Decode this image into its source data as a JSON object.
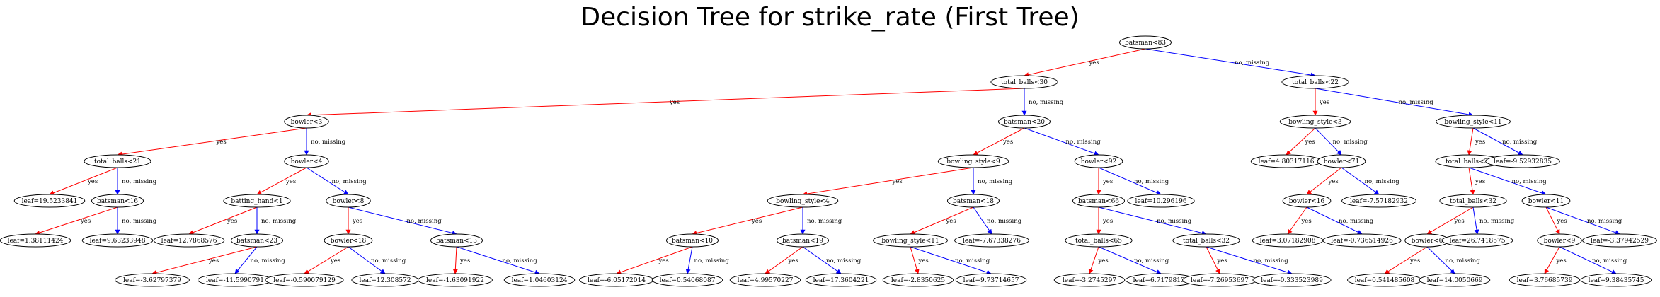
{
  "title": "Decision Tree for strike_rate (First Tree)",
  "colors": {
    "yes_edge": "#ff0000",
    "no_edge": "#0000ff",
    "node_stroke": "#000000",
    "background": "#ffffff"
  },
  "nodes": [
    {
      "id": "n0",
      "label": "batsman<83",
      "level": 0
    },
    {
      "id": "n1",
      "label": "total_balls<30",
      "level": 1
    },
    {
      "id": "n2",
      "label": "total_balls<22",
      "level": 1
    },
    {
      "id": "n3",
      "label": "bowler<3",
      "level": 2
    },
    {
      "id": "n4",
      "label": "batsman<20",
      "level": 2
    },
    {
      "id": "n5",
      "label": "bowling_style<3",
      "level": 2
    },
    {
      "id": "n6",
      "label": "bowling_style<11",
      "level": 2
    },
    {
      "id": "n7",
      "label": "total_balls<21",
      "level": 3
    },
    {
      "id": "n8",
      "label": "bowler<4",
      "level": 3
    },
    {
      "id": "n9",
      "label": "bowling_style<9",
      "level": 3
    },
    {
      "id": "n10",
      "label": "bowler<92",
      "level": 3
    },
    {
      "id": "n11",
      "label": "leaf=4.80317116",
      "level": 3
    },
    {
      "id": "n12",
      "label": "bowler<71",
      "level": 3
    },
    {
      "id": "n13",
      "label": "total_balls<33",
      "level": 3
    },
    {
      "id": "n14",
      "label": "leaf=-9.52932835",
      "level": 3
    },
    {
      "id": "n15",
      "label": "leaf=19.5233841",
      "level": 4
    },
    {
      "id": "n16",
      "label": "batsman<16",
      "level": 4
    },
    {
      "id": "n17",
      "label": "batting_hand<1",
      "level": 4
    },
    {
      "id": "n18",
      "label": "bowler<8",
      "level": 4
    },
    {
      "id": "n19",
      "label": "bowling_style<4",
      "level": 4
    },
    {
      "id": "n20",
      "label": "batsman<18",
      "level": 4
    },
    {
      "id": "n21",
      "label": "batsman<66",
      "level": 4
    },
    {
      "id": "n22",
      "label": "leaf=10.296196",
      "level": 4
    },
    {
      "id": "n23",
      "label": "bowler<16",
      "level": 4
    },
    {
      "id": "n24",
      "label": "leaf=-7.57182932",
      "level": 4
    },
    {
      "id": "n25",
      "label": "total_balls<32",
      "level": 4
    },
    {
      "id": "n26",
      "label": "bowler<11",
      "level": 4
    },
    {
      "id": "n27",
      "label": "leaf=1.38111424",
      "level": 5
    },
    {
      "id": "n28",
      "label": "leaf=9.63233948",
      "level": 5
    },
    {
      "id": "n29",
      "label": "leaf=12.7868576",
      "level": 5
    },
    {
      "id": "n30",
      "label": "batsman<23",
      "level": 5
    },
    {
      "id": "n31",
      "label": "bowler<18",
      "level": 5
    },
    {
      "id": "n32",
      "label": "batsman<13",
      "level": 5
    },
    {
      "id": "n33",
      "label": "batsman<10",
      "level": 5
    },
    {
      "id": "n34",
      "label": "batsman<19",
      "level": 5
    },
    {
      "id": "n35",
      "label": "bowling_style<11",
      "level": 5
    },
    {
      "id": "n36",
      "label": "leaf=-7.67338276",
      "level": 5
    },
    {
      "id": "n37",
      "label": "total_balls<65",
      "level": 5
    },
    {
      "id": "n38",
      "label": "total_balls<32",
      "level": 5
    },
    {
      "id": "n39",
      "label": "leaf=3.07182908",
      "level": 5
    },
    {
      "id": "n40",
      "label": "leaf=-0.736514926",
      "level": 5
    },
    {
      "id": "n41",
      "label": "bowler<6",
      "level": 5
    },
    {
      "id": "n42",
      "label": "leaf=26.7418575",
      "level": 5
    },
    {
      "id": "n43",
      "label": "bowler<9",
      "level": 5
    },
    {
      "id": "n44",
      "label": "leaf=-3.37942529",
      "level": 5
    },
    {
      "id": "n45",
      "label": "leaf=-3.62797379",
      "level": 6
    },
    {
      "id": "n46",
      "label": "leaf=-11.5990791",
      "level": 6
    },
    {
      "id": "n47",
      "label": "leaf=-0.590079129",
      "level": 6
    },
    {
      "id": "n48",
      "label": "leaf=12.308572",
      "level": 6
    },
    {
      "id": "n49",
      "label": "leaf=-1.63091922",
      "level": 6
    },
    {
      "id": "n50",
      "label": "leaf=1.04603124",
      "level": 6
    },
    {
      "id": "n51",
      "label": "leaf=-6.05172014",
      "level": 6
    },
    {
      "id": "n52",
      "label": "leaf=0.54068087",
      "level": 6
    },
    {
      "id": "n53",
      "label": "leaf=4.99570227",
      "level": 6
    },
    {
      "id": "n54",
      "label": "leaf=17.3604221",
      "level": 6
    },
    {
      "id": "n55",
      "label": "leaf=-2.8350625",
      "level": 6
    },
    {
      "id": "n56",
      "label": "leaf=9.73714657",
      "level": 6
    },
    {
      "id": "n57",
      "label": "leaf=-3.2745297",
      "level": 6
    },
    {
      "id": "n58",
      "label": "leaf=6.71798134",
      "level": 6
    },
    {
      "id": "n59",
      "label": "leaf=-7.26953697",
      "level": 6
    },
    {
      "id": "n60",
      "label": "leaf=-0.333523989",
      "level": 6
    },
    {
      "id": "n61",
      "label": "leaf=0.541485608",
      "level": 6
    },
    {
      "id": "n62",
      "label": "leaf=14.0050669",
      "level": 6
    },
    {
      "id": "n63",
      "label": "leaf=3.76685739",
      "level": 6
    },
    {
      "id": "n64",
      "label": "leaf=9.38435745",
      "level": 6
    }
  ],
  "edges": [
    {
      "from": "n0",
      "to": "n1",
      "kind": "yes",
      "label": "yes"
    },
    {
      "from": "n0",
      "to": "n2",
      "kind": "no",
      "label": "no, missing"
    },
    {
      "from": "n1",
      "to": "n3",
      "kind": "yes",
      "label": "yes"
    },
    {
      "from": "n1",
      "to": "n4",
      "kind": "no",
      "label": "no, missing"
    },
    {
      "from": "n2",
      "to": "n5",
      "kind": "yes",
      "label": "yes"
    },
    {
      "from": "n2",
      "to": "n6",
      "kind": "no",
      "label": "no, missing"
    },
    {
      "from": "n3",
      "to": "n7",
      "kind": "yes",
      "label": "yes"
    },
    {
      "from": "n3",
      "to": "n8",
      "kind": "no",
      "label": "no, missing"
    },
    {
      "from": "n4",
      "to": "n9",
      "kind": "yes",
      "label": "yes"
    },
    {
      "from": "n4",
      "to": "n10",
      "kind": "no",
      "label": "no, missing"
    },
    {
      "from": "n5",
      "to": "n11",
      "kind": "yes",
      "label": "yes"
    },
    {
      "from": "n5",
      "to": "n12",
      "kind": "no",
      "label": "no, missing"
    },
    {
      "from": "n6",
      "to": "n13",
      "kind": "yes",
      "label": "yes"
    },
    {
      "from": "n6",
      "to": "n14",
      "kind": "no",
      "label": "no, missing"
    },
    {
      "from": "n7",
      "to": "n15",
      "kind": "yes",
      "label": "yes"
    },
    {
      "from": "n7",
      "to": "n16",
      "kind": "no",
      "label": "no, missing"
    },
    {
      "from": "n8",
      "to": "n17",
      "kind": "yes",
      "label": "yes"
    },
    {
      "from": "n8",
      "to": "n18",
      "kind": "no",
      "label": "no, missing"
    },
    {
      "from": "n9",
      "to": "n19",
      "kind": "yes",
      "label": "yes"
    },
    {
      "from": "n9",
      "to": "n20",
      "kind": "no",
      "label": "no, missing"
    },
    {
      "from": "n10",
      "to": "n21",
      "kind": "yes",
      "label": "yes"
    },
    {
      "from": "n10",
      "to": "n22",
      "kind": "no",
      "label": "no, missing"
    },
    {
      "from": "n12",
      "to": "n23",
      "kind": "yes",
      "label": "yes"
    },
    {
      "from": "n12",
      "to": "n24",
      "kind": "no",
      "label": "no, missing"
    },
    {
      "from": "n13",
      "to": "n25",
      "kind": "yes",
      "label": "yes"
    },
    {
      "from": "n13",
      "to": "n26",
      "kind": "no",
      "label": "no, missing"
    },
    {
      "from": "n16",
      "to": "n27",
      "kind": "yes",
      "label": "yes"
    },
    {
      "from": "n16",
      "to": "n28",
      "kind": "no",
      "label": "no, missing"
    },
    {
      "from": "n17",
      "to": "n29",
      "kind": "yes",
      "label": "yes"
    },
    {
      "from": "n17",
      "to": "n30",
      "kind": "no",
      "label": "no, missing"
    },
    {
      "from": "n18",
      "to": "n31",
      "kind": "yes",
      "label": "yes"
    },
    {
      "from": "n18",
      "to": "n32",
      "kind": "no",
      "label": "no, missing"
    },
    {
      "from": "n19",
      "to": "n33",
      "kind": "yes",
      "label": "yes"
    },
    {
      "from": "n19",
      "to": "n34",
      "kind": "no",
      "label": "no, missing"
    },
    {
      "from": "n20",
      "to": "n35",
      "kind": "yes",
      "label": "yes"
    },
    {
      "from": "n20",
      "to": "n36",
      "kind": "no",
      "label": "no, missing"
    },
    {
      "from": "n21",
      "to": "n37",
      "kind": "yes",
      "label": "yes"
    },
    {
      "from": "n21",
      "to": "n38",
      "kind": "no",
      "label": "no, missing"
    },
    {
      "from": "n23",
      "to": "n39",
      "kind": "yes",
      "label": "yes"
    },
    {
      "from": "n23",
      "to": "n40",
      "kind": "no",
      "label": "no, missing"
    },
    {
      "from": "n25",
      "to": "n41",
      "kind": "yes",
      "label": "yes"
    },
    {
      "from": "n25",
      "to": "n42",
      "kind": "no",
      "label": "no, missing"
    },
    {
      "from": "n26",
      "to": "n43",
      "kind": "yes",
      "label": "yes"
    },
    {
      "from": "n26",
      "to": "n44",
      "kind": "no",
      "label": "no, missing"
    },
    {
      "from": "n30",
      "to": "n45",
      "kind": "yes",
      "label": "yes"
    },
    {
      "from": "n30",
      "to": "n46",
      "kind": "no",
      "label": "no, missing"
    },
    {
      "from": "n31",
      "to": "n47",
      "kind": "yes",
      "label": "yes"
    },
    {
      "from": "n31",
      "to": "n48",
      "kind": "no",
      "label": "no, missing"
    },
    {
      "from": "n32",
      "to": "n49",
      "kind": "yes",
      "label": "yes"
    },
    {
      "from": "n32",
      "to": "n50",
      "kind": "no",
      "label": "no, missing"
    },
    {
      "from": "n33",
      "to": "n51",
      "kind": "yes",
      "label": "yes"
    },
    {
      "from": "n33",
      "to": "n52",
      "kind": "no",
      "label": "no, missing"
    },
    {
      "from": "n34",
      "to": "n53",
      "kind": "yes",
      "label": "yes"
    },
    {
      "from": "n34",
      "to": "n54",
      "kind": "no",
      "label": "no, missing"
    },
    {
      "from": "n35",
      "to": "n55",
      "kind": "yes",
      "label": "yes"
    },
    {
      "from": "n35",
      "to": "n56",
      "kind": "no",
      "label": "no, missing"
    },
    {
      "from": "n37",
      "to": "n57",
      "kind": "yes",
      "label": "yes"
    },
    {
      "from": "n37",
      "to": "n58",
      "kind": "no",
      "label": "no, missing"
    },
    {
      "from": "n38",
      "to": "n59",
      "kind": "yes",
      "label": "yes"
    },
    {
      "from": "n38",
      "to": "n60",
      "kind": "no",
      "label": "no, missing"
    },
    {
      "from": "n41",
      "to": "n61",
      "kind": "yes",
      "label": "yes"
    },
    {
      "from": "n41",
      "to": "n62",
      "kind": "no",
      "label": "no, missing"
    },
    {
      "from": "n43",
      "to": "n63",
      "kind": "yes",
      "label": "yes"
    },
    {
      "from": "n43",
      "to": "n64",
      "kind": "no",
      "label": "no, missing"
    }
  ]
}
